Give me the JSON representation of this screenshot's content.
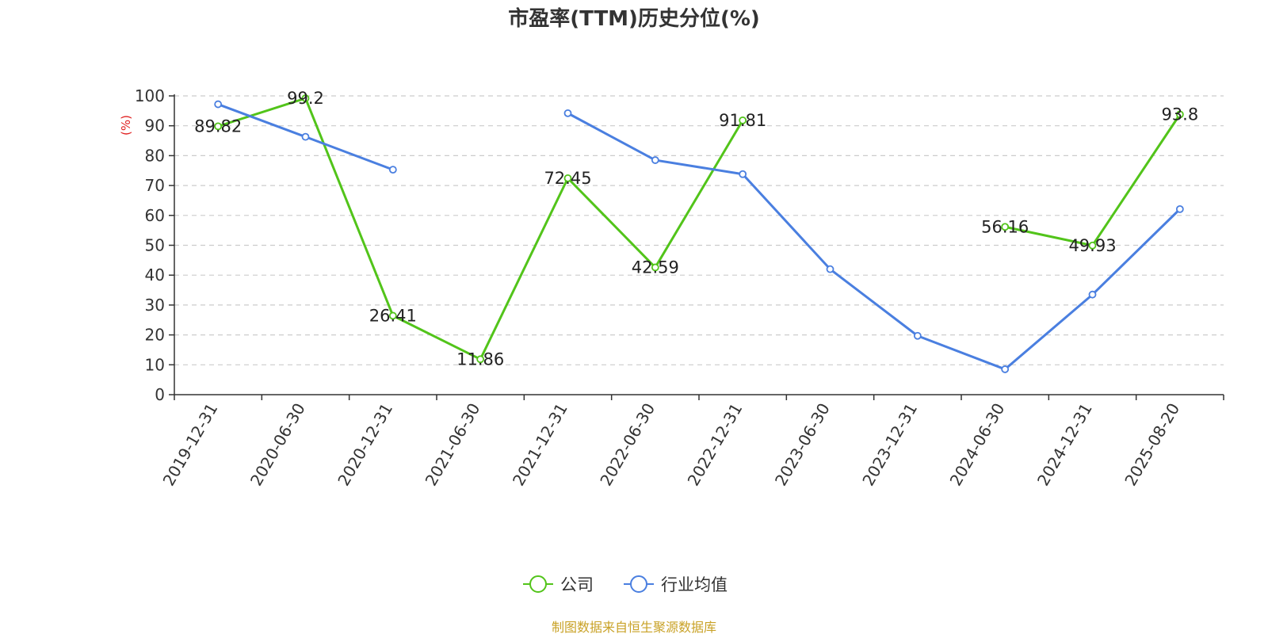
{
  "chart_data": {
    "type": "line",
    "title": "市盈率(TTM)历史分位(%)",
    "ylabel": "(%)",
    "ylim": [
      0,
      100
    ],
    "yticks": [
      0,
      10,
      20,
      30,
      40,
      50,
      60,
      70,
      80,
      90,
      100
    ],
    "categories": [
      "2019-12-31",
      "2020-06-30",
      "2020-12-31",
      "2021-06-30",
      "2021-12-31",
      "2022-06-30",
      "2022-12-31",
      "2023-06-30",
      "2023-12-31",
      "2024-06-30",
      "2024-12-31",
      "2025-08-20"
    ],
    "grid": true,
    "legend_position": "bottom",
    "series": [
      {
        "name": "公司",
        "color": "#52c41a",
        "values": [
          89.82,
          99.2,
          26.41,
          11.86,
          72.45,
          42.59,
          91.81,
          null,
          null,
          56.16,
          49.93,
          93.8
        ],
        "show_labels": true
      },
      {
        "name": "行业均值",
        "color": "#4a7fe0",
        "values": [
          97.2,
          86.3,
          75.3,
          null,
          94.2,
          78.5,
          73.8,
          42.0,
          19.7,
          8.5,
          33.5,
          62.1
        ],
        "show_labels": false
      }
    ],
    "source": "制图数据来自恒生聚源数据库",
    "source_color": "#c9a227",
    "unit_color": "#e02020"
  }
}
